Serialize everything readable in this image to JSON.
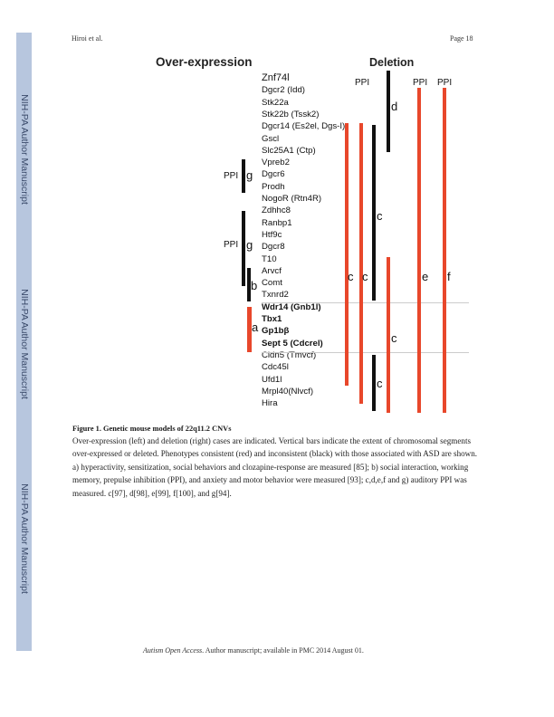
{
  "header": {
    "left": "Hiroi et al.",
    "right": "Page 18"
  },
  "sidebar": {
    "label": "NIH-PA Author Manuscript"
  },
  "figure": {
    "overexpression_title": "Over-expression",
    "deletion_title": "Deletion",
    "genes": [
      {
        "name": "Znf74l",
        "bold": false
      },
      {
        "name": "Dgcr2 (Idd)",
        "bold": false
      },
      {
        "name": "Stk22a",
        "bold": false
      },
      {
        "name": "Stk22b (Tssk2)",
        "bold": false
      },
      {
        "name": "Dgcr14 (Es2el, Dgs-I)",
        "bold": false
      },
      {
        "name": "Gscl",
        "bold": false
      },
      {
        "name": "Slc25A1 (Ctp)",
        "bold": false
      },
      {
        "name": "Vpreb2",
        "bold": false
      },
      {
        "name": "Dgcr6",
        "bold": false
      },
      {
        "name": "Prodh",
        "bold": false
      },
      {
        "name": "NogoR (Rtn4R)",
        "bold": false
      },
      {
        "name": "Zdhhc8",
        "bold": false
      },
      {
        "name": "Ranbp1",
        "bold": false
      },
      {
        "name": "Htf9c",
        "bold": false
      },
      {
        "name": "Dgcr8",
        "bold": false
      },
      {
        "name": "T10",
        "bold": false
      },
      {
        "name": "Arvcf",
        "bold": false
      },
      {
        "name": "Comt",
        "bold": false
      },
      {
        "name": "Txnrd2",
        "bold": false
      },
      {
        "name": "Wdr14 (Gnb1l)",
        "bold": true
      },
      {
        "name": "Tbx1",
        "bold": true
      },
      {
        "name": "Gp1bβ",
        "bold": true
      },
      {
        "name": "Sept 5 (Cdcrel)",
        "bold": true
      },
      {
        "name": "Cldn5 (Tmvcf)",
        "bold": false
      },
      {
        "name": "Cdc45l",
        "bold": false
      },
      {
        "name": "Ufd1l",
        "bold": false
      },
      {
        "name": "Mrpl40(Nlvcf)",
        "bold": false
      },
      {
        "name": "Hira",
        "bold": false
      }
    ],
    "ppi_label": "PPI",
    "labels": {
      "a": "a",
      "b": "b",
      "c": "c",
      "d": "d",
      "e": "e",
      "f": "f",
      "g": "g"
    },
    "colors": {
      "consistent": "#e8472b",
      "inconsistent": "#111111"
    }
  },
  "caption": {
    "title": "Figure 1. Genetic mouse models of 22q11.2 CNVs",
    "body": "Over-expression (left) and deletion (right) cases are indicated. Vertical bars indicate the extent of chromosomal segments over-expressed or deleted. Phenotypes consistent (red) and inconsistent (black) with those associated with ASD are shown. a) hyperactivity, sensitization, social behaviors and clozapine-response are measured [85]; b) social interaction, working memory, prepulse inhibition (PPI), and anxiety and motor behavior were measured [93]; c,d,e,f and g) auditory PPI was measured. c[97], d[98], e[99], f[100], and g[94]."
  },
  "footer": {
    "journal": "Autism Open Access",
    "text": ". Author manuscript; available in PMC 2014 August 01."
  }
}
